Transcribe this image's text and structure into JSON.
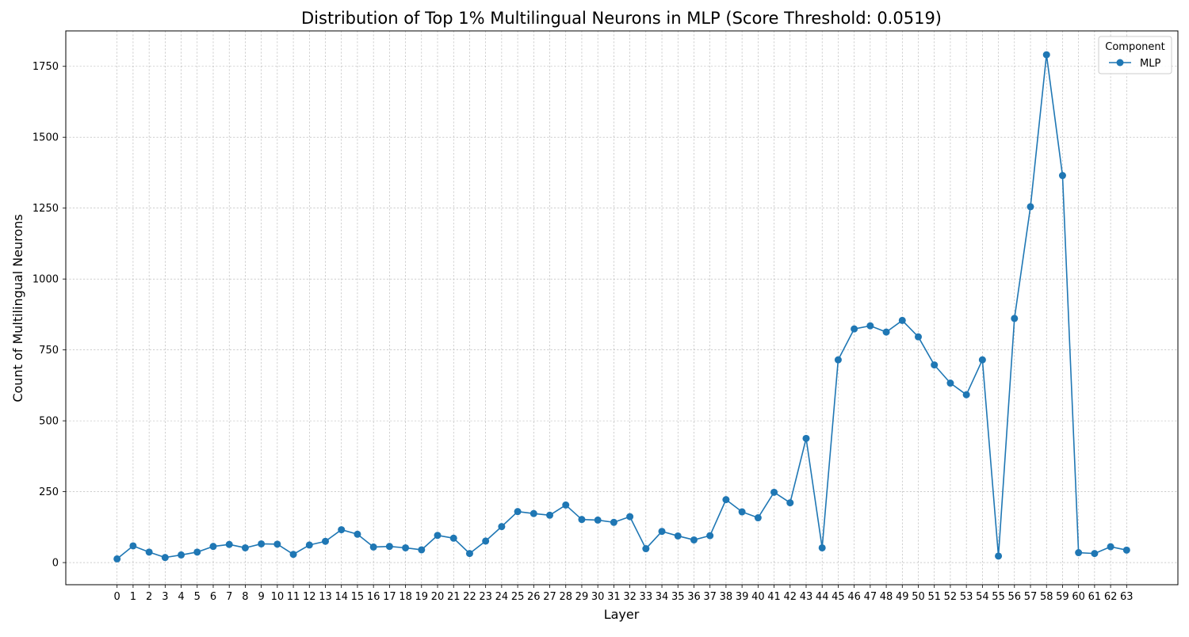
{
  "chart_data": {
    "type": "line",
    "title": "Distribution of Top 1% Multilingual Neurons in MLP (Score Threshold: 0.0519)",
    "xlabel": "Layer",
    "ylabel": "Count of Multilingual Neurons",
    "x": [
      0,
      1,
      2,
      3,
      4,
      5,
      6,
      7,
      8,
      9,
      10,
      11,
      12,
      13,
      14,
      15,
      16,
      17,
      18,
      19,
      20,
      21,
      22,
      23,
      24,
      25,
      26,
      27,
      28,
      29,
      30,
      31,
      32,
      33,
      34,
      35,
      36,
      37,
      38,
      39,
      40,
      41,
      42,
      43,
      44,
      45,
      46,
      47,
      48,
      49,
      50,
      51,
      52,
      53,
      54,
      55,
      56,
      57,
      58,
      59,
      60,
      61,
      62,
      63
    ],
    "xlim": [
      -3.2,
      66.2
    ],
    "ylim": [
      -78,
      1875
    ],
    "yticks": [
      0,
      250,
      500,
      750,
      1000,
      1250,
      1500,
      1750
    ],
    "grid": true,
    "series": [
      {
        "name": "MLP",
        "color": "#1f77b4",
        "marker": "circle",
        "values": [
          13,
          59,
          37,
          18,
          27,
          37,
          57,
          64,
          52,
          66,
          65,
          29,
          62,
          75,
          116,
          100,
          55,
          57,
          52,
          45,
          96,
          86,
          32,
          76,
          127,
          180,
          173,
          167,
          203,
          152,
          150,
          142,
          162,
          49,
          110,
          94,
          80,
          95,
          222,
          179,
          158,
          248,
          211,
          438,
          52,
          715,
          824,
          835,
          813,
          854,
          796,
          697,
          633,
          592,
          715,
          23,
          861,
          1255,
          1791,
          1365,
          35,
          32,
          56,
          44
        ]
      }
    ],
    "legend": {
      "title": "Component",
      "placement": "top-right"
    }
  }
}
